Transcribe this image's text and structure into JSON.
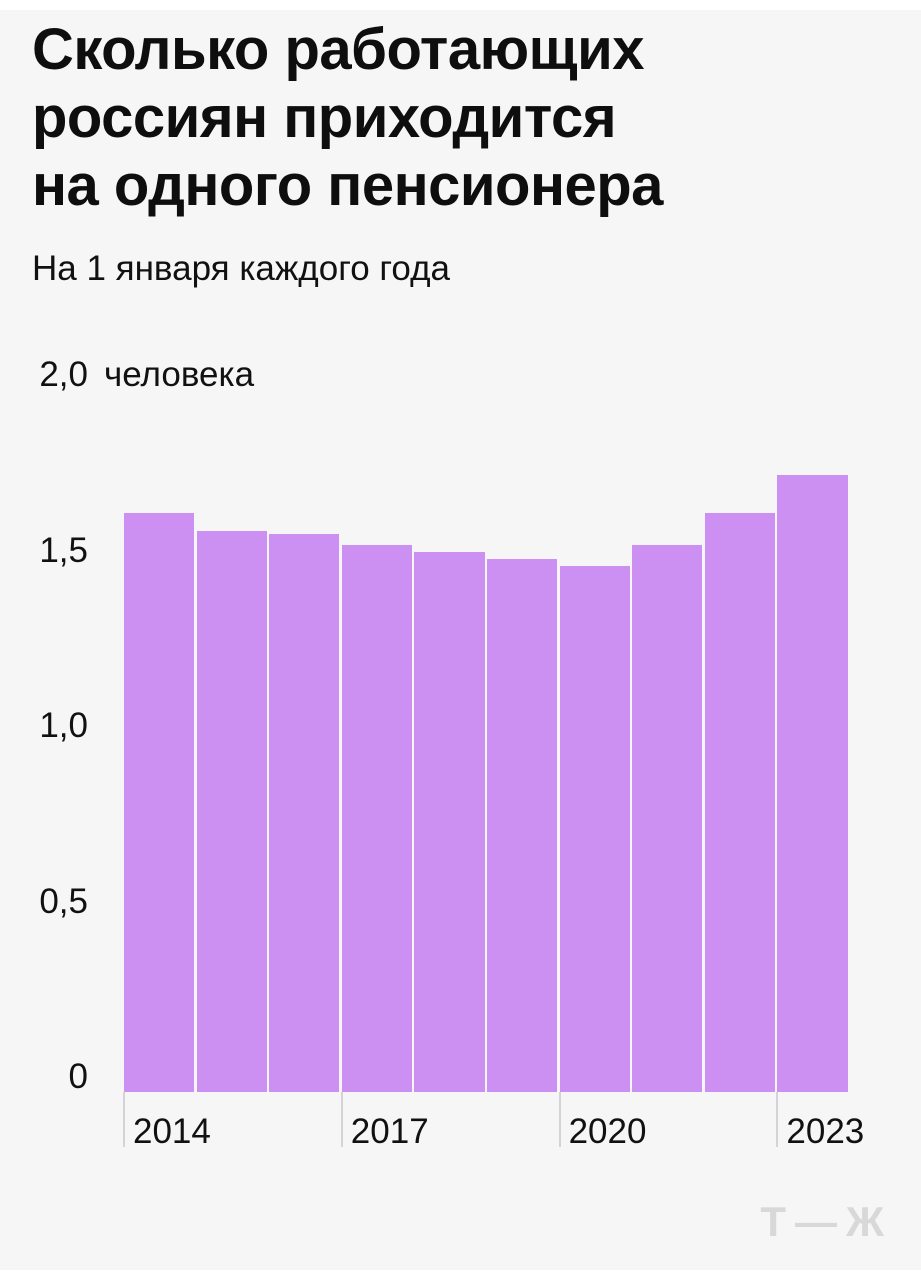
{
  "page": {
    "card_background": "#f7f6f7",
    "outer_background": "#ffffff"
  },
  "header": {
    "title": "Сколько работающих\nроссиян приходится\nна одного пенсионера",
    "subtitle": "На 1 января каждого года"
  },
  "chart_data": {
    "type": "bar",
    "title": "Сколько работающих россиян приходится на одного пенсионера",
    "subtitle": "На 1 января каждого года",
    "categories": [
      2014,
      2015,
      2016,
      2017,
      2018,
      2019,
      2020,
      2021,
      2022,
      2023
    ],
    "values": [
      1.65,
      1.6,
      1.59,
      1.56,
      1.54,
      1.52,
      1.5,
      1.56,
      1.65,
      1.76
    ],
    "unit": "человека",
    "xlabel": "",
    "ylabel": "",
    "ylim": [
      0,
      2.0
    ],
    "grid": false,
    "legend": false,
    "bar_color": "#cc8ff2",
    "y_ticks": [
      {
        "value": 2.0,
        "label": "2,0",
        "unit": "человека"
      },
      {
        "value": 1.5,
        "label": "1,5"
      },
      {
        "value": 1.0,
        "label": "1,0"
      },
      {
        "value": 0.5,
        "label": "0,5"
      },
      {
        "value": 0.0,
        "label": "0"
      }
    ],
    "x_ticks": [
      "2014",
      "2017",
      "2020",
      "2023"
    ]
  },
  "footer": {
    "logo_text": "Т—Ж"
  }
}
